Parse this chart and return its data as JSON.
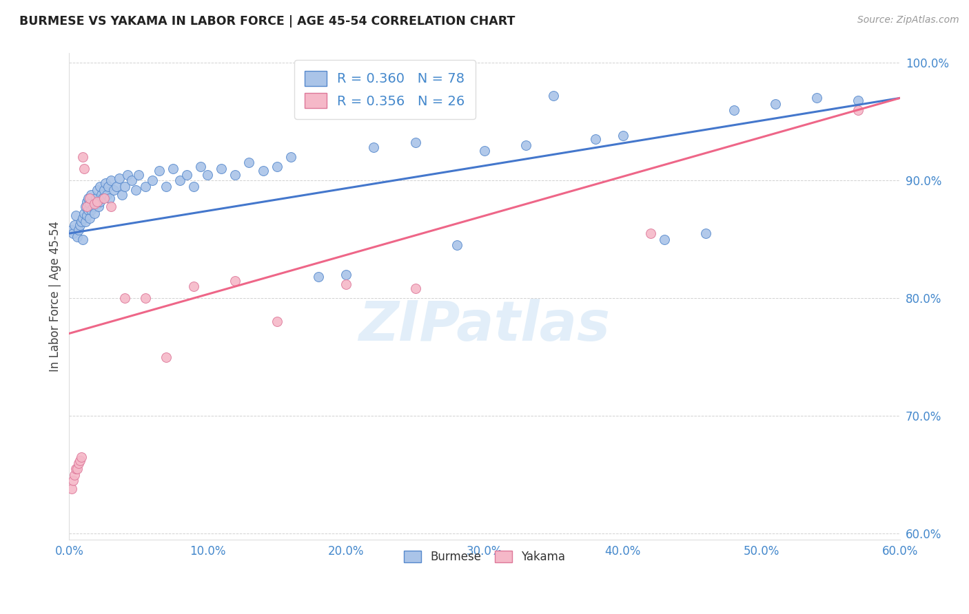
{
  "title": "BURMESE VS YAKAMA IN LABOR FORCE | AGE 45-54 CORRELATION CHART",
  "source": "Source: ZipAtlas.com",
  "ylabel": "In Labor Force | Age 45-54",
  "legend_label1": "Burmese",
  "legend_label2": "Yakama",
  "R1": 0.36,
  "N1": 78,
  "R2": 0.356,
  "N2": 26,
  "xlim": [
    0.0,
    0.6
  ],
  "ylim": [
    0.595,
    1.008
  ],
  "xticks": [
    0.0,
    0.1,
    0.2,
    0.3,
    0.4,
    0.5,
    0.6
  ],
  "yticks": [
    0.6,
    0.7,
    0.8,
    0.9,
    1.0
  ],
  "color_burmese_fill": "#aac4e8",
  "color_burmese_edge": "#5588cc",
  "color_yakama_fill": "#f5b8c8",
  "color_yakama_edge": "#dd7799",
  "color_line_burmese": "#4477cc",
  "color_line_yakama": "#ee6688",
  "watermark": "ZIPatlas",
  "burmese_x": [
    0.002,
    0.003,
    0.004,
    0.005,
    0.006,
    0.007,
    0.008,
    0.009,
    0.01,
    0.01,
    0.011,
    0.012,
    0.012,
    0.013,
    0.013,
    0.014,
    0.014,
    0.015,
    0.015,
    0.016,
    0.016,
    0.017,
    0.018,
    0.019,
    0.02,
    0.02,
    0.021,
    0.022,
    0.022,
    0.023,
    0.024,
    0.025,
    0.026,
    0.027,
    0.028,
    0.029,
    0.03,
    0.032,
    0.034,
    0.036,
    0.038,
    0.04,
    0.042,
    0.045,
    0.048,
    0.05,
    0.055,
    0.06,
    0.065,
    0.07,
    0.075,
    0.08,
    0.085,
    0.09,
    0.095,
    0.1,
    0.11,
    0.12,
    0.13,
    0.14,
    0.15,
    0.16,
    0.18,
    0.2,
    0.22,
    0.25,
    0.28,
    0.3,
    0.33,
    0.35,
    0.38,
    0.4,
    0.43,
    0.46,
    0.48,
    0.51,
    0.54,
    0.57
  ],
  "burmese_y": [
    0.858,
    0.855,
    0.862,
    0.87,
    0.852,
    0.858,
    0.862,
    0.865,
    0.85,
    0.868,
    0.872,
    0.865,
    0.878,
    0.87,
    0.882,
    0.875,
    0.885,
    0.868,
    0.88,
    0.875,
    0.888,
    0.878,
    0.872,
    0.885,
    0.88,
    0.892,
    0.878,
    0.882,
    0.895,
    0.888,
    0.885,
    0.892,
    0.898,
    0.888,
    0.895,
    0.885,
    0.9,
    0.892,
    0.895,
    0.902,
    0.888,
    0.895,
    0.905,
    0.9,
    0.892,
    0.905,
    0.895,
    0.9,
    0.908,
    0.895,
    0.91,
    0.9,
    0.905,
    0.895,
    0.912,
    0.905,
    0.91,
    0.905,
    0.915,
    0.908,
    0.912,
    0.92,
    0.818,
    0.82,
    0.928,
    0.932,
    0.845,
    0.925,
    0.93,
    0.972,
    0.935,
    0.938,
    0.85,
    0.855,
    0.96,
    0.965,
    0.97,
    0.968
  ],
  "yakama_x": [
    0.002,
    0.003,
    0.004,
    0.005,
    0.006,
    0.007,
    0.008,
    0.009,
    0.01,
    0.011,
    0.013,
    0.015,
    0.018,
    0.02,
    0.025,
    0.03,
    0.04,
    0.055,
    0.07,
    0.09,
    0.12,
    0.15,
    0.2,
    0.25,
    0.42,
    0.57
  ],
  "yakama_y": [
    0.638,
    0.645,
    0.65,
    0.655,
    0.655,
    0.66,
    0.662,
    0.665,
    0.92,
    0.91,
    0.878,
    0.885,
    0.88,
    0.882,
    0.885,
    0.878,
    0.8,
    0.8,
    0.75,
    0.81,
    0.815,
    0.78,
    0.812,
    0.808,
    0.855,
    0.96
  ]
}
